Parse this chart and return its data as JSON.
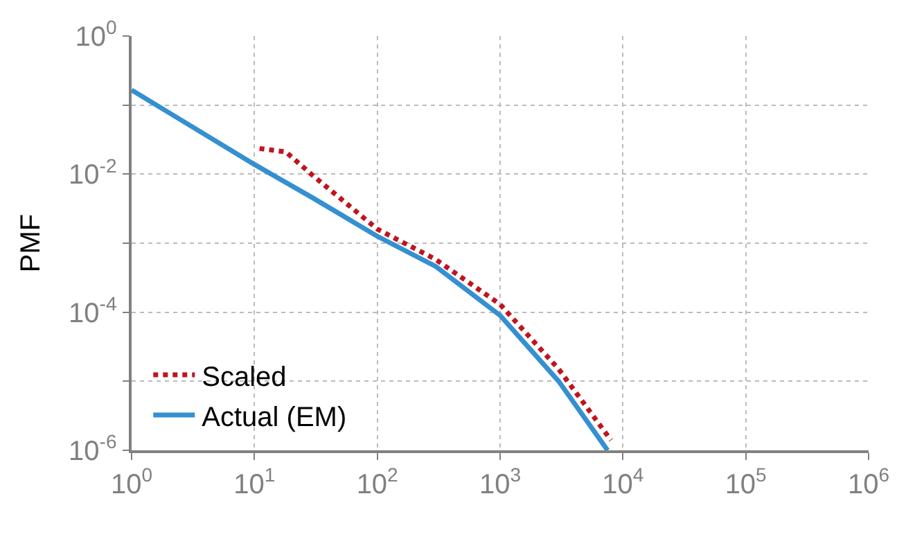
{
  "chart_data": {
    "type": "line",
    "ylabel": "PMF",
    "log": "xy",
    "grid": true,
    "legend": "bottom left",
    "xlim": [
      1,
      1000000
    ],
    "ylim": [
      1e-06,
      1
    ],
    "xticks": [
      {
        "value": 1,
        "label": "10$^{0}$"
      },
      {
        "value": 10,
        "label": "10$^{1}$"
      },
      {
        "value": 100,
        "label": "10$^{2}$"
      },
      {
        "value": 1000,
        "label": "10$^{3}$"
      },
      {
        "value": 10000,
        "label": "10$^{4}$"
      },
      {
        "value": 100000,
        "label": "10$^{5}$"
      },
      {
        "value": 1000000,
        "label": "10$^{6}$"
      }
    ],
    "yticks": [
      {
        "value": 1e-06,
        "label": "10$^{-6}$"
      },
      {
        "value": 1e-05,
        "label": null
      },
      {
        "value": 0.0001,
        "label": "10$^{-4}$"
      },
      {
        "value": 0.001,
        "label": null
      },
      {
        "value": 0.01,
        "label": "10$^{-2}$"
      },
      {
        "value": 0.1,
        "label": null
      },
      {
        "value": 1,
        "label": "10$^{0}$"
      }
    ],
    "series": [
      {
        "name": "Scaled",
        "color": "#c0141e",
        "line_style": "dotted",
        "x": [
          11,
          18,
          30,
          100,
          300,
          1000,
          3000,
          8000
        ],
        "values": [
          0.0235,
          0.021,
          0.0095,
          0.0016,
          0.00058,
          0.00013,
          1.5e-05,
          1.4e-06
        ]
      },
      {
        "name": "Actual (EM)",
        "color": "#3490d0",
        "line_style": "solid",
        "x": [
          1,
          10,
          30,
          100,
          300,
          1000,
          3000,
          7500
        ],
        "values": [
          0.165,
          0.0138,
          0.0045,
          0.00126,
          0.00046,
          9e-05,
          1e-05,
          1e-06
        ]
      }
    ]
  }
}
